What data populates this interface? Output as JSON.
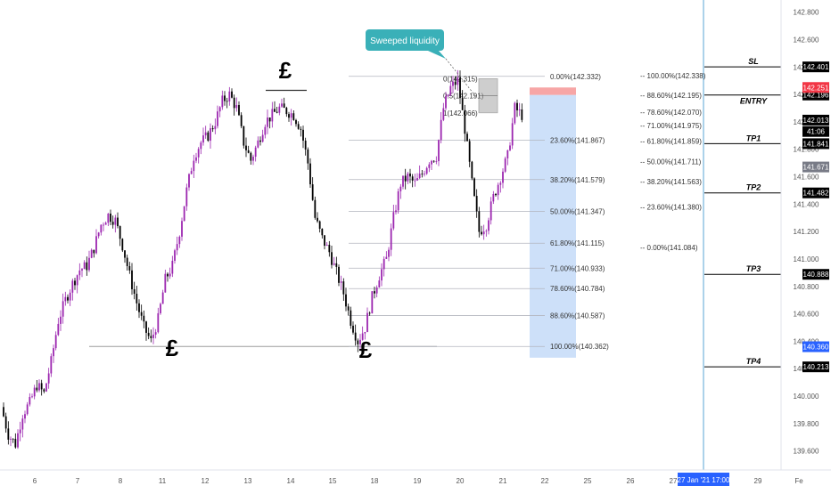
{
  "chart_data": {
    "type": "candlestick",
    "symbol_pair": "price chart",
    "price_axis": {
      "range": [
        139.5,
        142.85
      ],
      "ticks": [
        "142.800",
        "142.600",
        "142.400",
        "142.200",
        "142.000",
        "141.800",
        "141.600",
        "141.400",
        "141.200",
        "141.000",
        "140.800",
        "140.600",
        "140.400",
        "140.200",
        "140.000",
        "139.800",
        "139.600"
      ]
    },
    "time_axis": {
      "ticks": [
        "6",
        "7",
        "8",
        "11",
        "12",
        "13",
        "14",
        "15",
        "18",
        "19",
        "20",
        "21",
        "22",
        "25",
        "26",
        "27",
        "28",
        "29",
        "Fe"
      ],
      "cursor_label": "27 Jan '21   17:00"
    },
    "price_path": [
      [
        0,
        139.92
      ],
      [
        1,
        139.72
      ],
      [
        2,
        139.65
      ],
      [
        3,
        139.87
      ],
      [
        4,
        139.95
      ],
      [
        5,
        140.08
      ],
      [
        6,
        140.02
      ],
      [
        7,
        140.25
      ],
      [
        8,
        140.55
      ],
      [
        9,
        140.7
      ],
      [
        10,
        140.82
      ],
      [
        11,
        140.92
      ],
      [
        12,
        140.95
      ],
      [
        13,
        141.08
      ],
      [
        14,
        141.25
      ],
      [
        15,
        141.32
      ],
      [
        16,
        141.28
      ],
      [
        17,
        141.1
      ],
      [
        18,
        140.88
      ],
      [
        19,
        140.68
      ],
      [
        20,
        140.5
      ],
      [
        21,
        140.4
      ],
      [
        22,
        140.56
      ],
      [
        23,
        140.85
      ],
      [
        24,
        140.95
      ],
      [
        25,
        141.2
      ],
      [
        26,
        141.5
      ],
      [
        27,
        141.75
      ],
      [
        28,
        141.85
      ],
      [
        29,
        141.9
      ],
      [
        30,
        142.0
      ],
      [
        31,
        142.15
      ],
      [
        32,
        142.2
      ],
      [
        33,
        142.1
      ],
      [
        34,
        141.85
      ],
      [
        35,
        141.72
      ],
      [
        36,
        141.85
      ],
      [
        37,
        142.0
      ],
      [
        38,
        142.05
      ],
      [
        39,
        142.1
      ],
      [
        40,
        142.08
      ],
      [
        41,
        142.05
      ],
      [
        42,
        141.95
      ],
      [
        43,
        141.7
      ],
      [
        44,
        141.3
      ],
      [
        45,
        141.15
      ],
      [
        46,
        141.05
      ],
      [
        47,
        140.9
      ],
      [
        48,
        140.75
      ],
      [
        49,
        140.55
      ],
      [
        50,
        140.4
      ],
      [
        51,
        140.5
      ],
      [
        52,
        140.72
      ],
      [
        53,
        140.88
      ],
      [
        54,
        141.0
      ],
      [
        55,
        141.3
      ],
      [
        56,
        141.55
      ],
      [
        57,
        141.6
      ],
      [
        58,
        141.55
      ],
      [
        59,
        141.62
      ],
      [
        60,
        141.72
      ],
      [
        61,
        141.75
      ],
      [
        62,
        142.1
      ],
      [
        63,
        142.25
      ],
      [
        64,
        142.3
      ],
      [
        65,
        141.95
      ],
      [
        66,
        141.55
      ],
      [
        67,
        141.2
      ],
      [
        68,
        141.25
      ],
      [
        69,
        141.45
      ],
      [
        70,
        141.6
      ],
      [
        71,
        141.75
      ],
      [
        72,
        142.1
      ],
      [
        73,
        142.05
      ]
    ],
    "fib_levels_left": [
      {
        "label": "0.00%(142.332)",
        "value": 142.332
      },
      {
        "label": "23.60%(141.867)",
        "value": 141.867
      },
      {
        "label": "38.20%(141.579)",
        "value": 141.579
      },
      {
        "label": "50.00%(141.347)",
        "value": 141.347
      },
      {
        "label": "61.80%(141.115)",
        "value": 141.115
      },
      {
        "label": "71.00%(140.933)",
        "value": 140.933
      },
      {
        "label": "78.60%(140.784)",
        "value": 140.784
      },
      {
        "label": "88.60%(140.587)",
        "value": 140.587
      },
      {
        "label": "100.00%(140.362)",
        "value": 140.362
      }
    ],
    "fib_levels_right": [
      {
        "label": "100.00%(142.338)",
        "value": 142.338
      },
      {
        "label": "88.60%(142.195)",
        "value": 142.195
      },
      {
        "label": "78.60%(142.070)",
        "value": 142.07
      },
      {
        "label": "71.00%(141.975)",
        "value": 141.975
      },
      {
        "label": "61.80%(141.859)",
        "value": 141.859
      },
      {
        "label": "50.00%(141.711)",
        "value": 141.711
      },
      {
        "label": "38.20%(141.563)",
        "value": 141.563
      },
      {
        "label": "23.60%(141.380)",
        "value": 141.38
      },
      {
        "label": "0.00%(141.084)",
        "value": 141.084
      }
    ],
    "fib_small": [
      {
        "label": "0(142.315)",
        "value": 142.315
      },
      {
        "label": "0.5(142.191)",
        "value": 142.191
      },
      {
        "label": "1(142.066)",
        "value": 142.066
      }
    ],
    "targets": [
      {
        "label": "SL",
        "price": "142.401",
        "value": 142.401
      },
      {
        "label": "ENTRY",
        "price": "142.196",
        "value": 142.196
      },
      {
        "label": "TP1",
        "price": "141.841",
        "value": 141.841
      },
      {
        "label": "TP2",
        "price": "141.482",
        "value": 141.482
      },
      {
        "label": "TP3",
        "price": "140.888",
        "value": 140.888
      },
      {
        "label": "TP4",
        "price": "140.213",
        "value": 140.213
      }
    ],
    "price_badges": [
      {
        "price": "142.251",
        "value": 142.251,
        "color": "#f23645"
      },
      {
        "price": "142.013",
        "value": 142.013,
        "color": "#000000"
      },
      {
        "price": "41:06",
        "value": 141.93,
        "color": "#000000"
      },
      {
        "price": "141.671",
        "value": 141.671,
        "color": "#787b86"
      },
      {
        "price": "140.360",
        "value": 140.36,
        "color": "#2962ff"
      }
    ],
    "annotations": {
      "callout": "Sweeped liquidity",
      "symbols": [
        "£",
        "£",
        "£"
      ]
    },
    "colors": {
      "up_candle": "#9c27b0",
      "down_candle": "#000000",
      "risk_zone": "#f7a6a6",
      "reward_zone": "#bcd6f7",
      "callout_bg": "#3ab0b8"
    }
  }
}
